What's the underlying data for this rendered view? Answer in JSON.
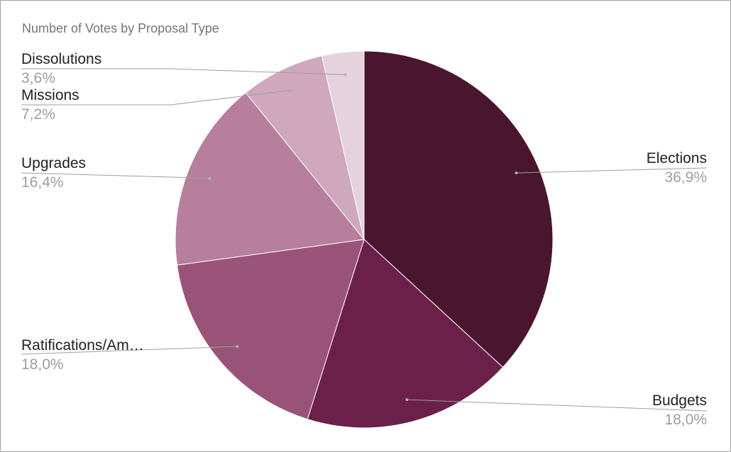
{
  "chart_data": {
    "type": "pie",
    "title": "Number of Votes by Proposal Type",
    "slices": [
      {
        "label": "Elections",
        "value": 36.9,
        "pct_label": "36,9%",
        "color": "#4a162f"
      },
      {
        "label": "Budgets",
        "value": 18.0,
        "pct_label": "18,0%",
        "color": "#6a2049"
      },
      {
        "label": "Ratifications/Am…",
        "value": 18.0,
        "pct_label": "18,0%",
        "color": "#9a5378"
      },
      {
        "label": "Upgrades",
        "value": 16.4,
        "pct_label": "16,4%",
        "color": "#b77f9c"
      },
      {
        "label": "Missions",
        "value": 7.2,
        "pct_label": "7,2%",
        "color": "#cfa8bd"
      },
      {
        "label": "Dissolutions",
        "value": 3.6,
        "pct_label": "3,6%",
        "color": "#e6d2dd"
      }
    ],
    "start_angle": "12 o'clock",
    "direction": "clockwise",
    "legend": "labels with leader lines"
  }
}
